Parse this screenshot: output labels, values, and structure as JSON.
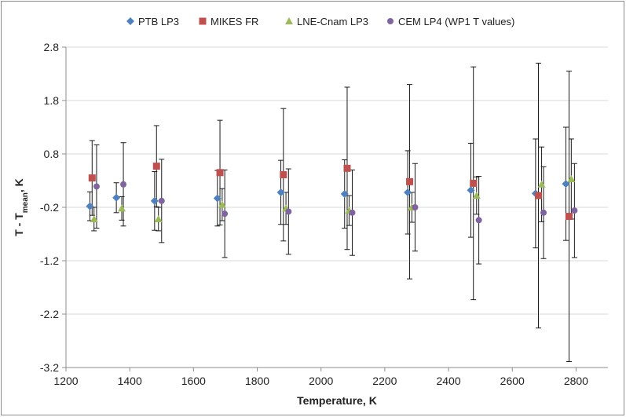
{
  "chart_data": {
    "type": "scatter",
    "title": "",
    "xlabel": "Temperature, K",
    "ylabel": {
      "prefix": "T - T",
      "subscript": "mean",
      "suffix": ", K"
    },
    "xlim": [
      1200,
      2900
    ],
    "ylim": [
      -3.2,
      2.8
    ],
    "x_ticks": [
      1200,
      1400,
      1600,
      1800,
      2000,
      2200,
      2400,
      2600,
      2800
    ],
    "y_ticks": [
      -3.2,
      -2.2,
      -1.2,
      -0.2,
      0.8,
      1.8,
      2.8
    ],
    "x_tick_labels": [
      "1200",
      "1400",
      "1600",
      "1800",
      "2000",
      "2200",
      "2400",
      "2600",
      "2800"
    ],
    "y_tick_labels": [
      "-3.2",
      "-2.2",
      "-1.2",
      "-0.2",
      "0.8",
      "1.8",
      "2.8"
    ],
    "grid": "horizontal",
    "legend_position": "top",
    "series": [
      {
        "name": "PTB LP3",
        "marker": "diamond",
        "color": "#4F81BD",
        "points": [
          {
            "x": 1275,
            "y": -0.18,
            "lo": 0.27,
            "hi": 0.27
          },
          {
            "x": 1358,
            "y": -0.02,
            "lo": 0.28,
            "hi": 0.28
          },
          {
            "x": 1478,
            "y": -0.08,
            "lo": 0.55,
            "hi": 0.55
          },
          {
            "x": 1675,
            "y": -0.03,
            "lo": 0.52,
            "hi": 0.52
          },
          {
            "x": 1874,
            "y": 0.08,
            "lo": 0.6,
            "hi": 0.6
          },
          {
            "x": 2074,
            "y": 0.05,
            "lo": 0.64,
            "hi": 0.64
          },
          {
            "x": 2272,
            "y": 0.08,
            "lo": 0.78,
            "hi": 0.78
          },
          {
            "x": 2470,
            "y": 0.12,
            "lo": 0.88,
            "hi": 0.88
          },
          {
            "x": 2673,
            "y": 0.06,
            "lo": 1.02,
            "hi": 1.02
          },
          {
            "x": 2768,
            "y": 0.24,
            "lo": 1.06,
            "hi": 1.06
          }
        ]
      },
      {
        "name": "MIKES FR",
        "marker": "square",
        "color": "#C0504D",
        "points": [
          {
            "x": 1282,
            "y": 0.35,
            "lo": 0.7,
            "hi": 0.7
          },
          {
            "x": 1484,
            "y": 0.57,
            "lo": 0.76,
            "hi": 0.76
          },
          {
            "x": 1683,
            "y": 0.45,
            "lo": 0.98,
            "hi": 0.98
          },
          {
            "x": 1882,
            "y": 0.41,
            "lo": 1.24,
            "hi": 1.24
          },
          {
            "x": 2082,
            "y": 0.53,
            "lo": 1.52,
            "hi": 1.52
          },
          {
            "x": 2278,
            "y": 0.28,
            "lo": 1.82,
            "hi": 1.82
          },
          {
            "x": 2478,
            "y": 0.25,
            "lo": 2.18,
            "hi": 2.18
          },
          {
            "x": 2682,
            "y": 0.02,
            "lo": 2.48,
            "hi": 2.48
          },
          {
            "x": 2778,
            "y": -0.37,
            "lo": 2.72,
            "hi": 2.72
          }
        ]
      },
      {
        "name": "LNE-Cnam LP3",
        "marker": "triangle",
        "color": "#9BBB59",
        "points": [
          {
            "x": 1288,
            "y": -0.42,
            "lo": 0.22,
            "hi": 0.22
          },
          {
            "x": 1375,
            "y": -0.22,
            "lo": 0.22,
            "hi": 0.22
          },
          {
            "x": 1490,
            "y": -0.42,
            "lo": 0.22,
            "hi": 0.22
          },
          {
            "x": 1690,
            "y": -0.15,
            "lo": 0.3,
            "hi": 0.3
          },
          {
            "x": 1890,
            "y": -0.22,
            "lo": 0.3,
            "hi": 0.3
          },
          {
            "x": 2088,
            "y": -0.26,
            "lo": 0.28,
            "hi": 0.28
          },
          {
            "x": 2285,
            "y": -0.2,
            "lo": 0.28,
            "hi": 0.28
          },
          {
            "x": 2488,
            "y": 0.02,
            "lo": 0.35,
            "hi": 0.35
          },
          {
            "x": 2692,
            "y": 0.23,
            "lo": 0.7,
            "hi": 0.7
          },
          {
            "x": 2785,
            "y": 0.33,
            "lo": 0.75,
            "hi": 0.75
          }
        ]
      },
      {
        "name": "CEM LP4 (WP1 T values)",
        "marker": "circle",
        "color": "#8064A2",
        "points": [
          {
            "x": 1296,
            "y": 0.19,
            "lo": 0.78,
            "hi": 0.78
          },
          {
            "x": 1380,
            "y": 0.23,
            "lo": 0.78,
            "hi": 0.78
          },
          {
            "x": 1500,
            "y": -0.08,
            "lo": 0.78,
            "hi": 0.78
          },
          {
            "x": 1698,
            "y": -0.32,
            "lo": 0.82,
            "hi": 0.82
          },
          {
            "x": 1898,
            "y": -0.28,
            "lo": 0.8,
            "hi": 0.8
          },
          {
            "x": 2098,
            "y": -0.3,
            "lo": 0.8,
            "hi": 0.8
          },
          {
            "x": 2295,
            "y": -0.2,
            "lo": 0.82,
            "hi": 0.82
          },
          {
            "x": 2495,
            "y": -0.44,
            "lo": 0.82,
            "hi": 0.82
          },
          {
            "x": 2698,
            "y": -0.3,
            "lo": 0.86,
            "hi": 0.86
          },
          {
            "x": 2795,
            "y": -0.26,
            "lo": 0.88,
            "hi": 0.88
          }
        ]
      }
    ]
  }
}
